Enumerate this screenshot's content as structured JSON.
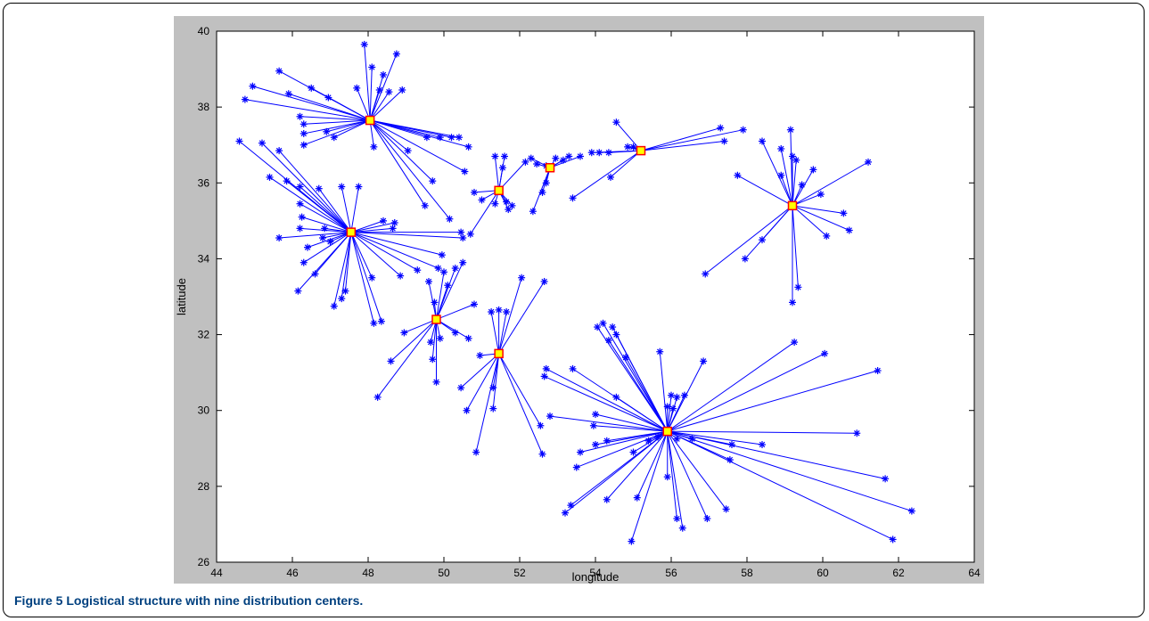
{
  "caption": {
    "label": "Figure 5",
    "text": "Logistical structure with nine distribution centers."
  },
  "chart_data": {
    "type": "scatter",
    "title": "",
    "xlabel": "longitude",
    "ylabel": "latitude",
    "xlim": [
      44,
      64
    ],
    "ylim": [
      26,
      40
    ],
    "xticks": [
      "44",
      "46",
      "48",
      "50",
      "52",
      "54",
      "56",
      "58",
      "60",
      "62",
      "64"
    ],
    "yticks": [
      "26",
      "28",
      "30",
      "32",
      "34",
      "36",
      "38",
      "40"
    ],
    "grid": false,
    "colors": {
      "link": "#0000ff",
      "customer": "#0000ff",
      "center_fill": "#ffff00",
      "center_edge": "#ff0000"
    },
    "series": [
      {
        "center": [
          48.05,
          37.65
        ],
        "customers": [
          [
            47.9,
            39.65
          ],
          [
            48.1,
            39.05
          ],
          [
            48.4,
            38.85
          ],
          [
            48.75,
            39.4
          ],
          [
            47.7,
            38.5
          ],
          [
            48.3,
            38.45
          ],
          [
            48.55,
            38.4
          ],
          [
            48.9,
            38.45
          ],
          [
            44.95,
            38.55
          ],
          [
            44.75,
            38.2
          ],
          [
            45.65,
            38.95
          ],
          [
            45.9,
            38.35
          ],
          [
            46.5,
            38.5
          ],
          [
            46.95,
            38.25
          ],
          [
            46.2,
            37.75
          ],
          [
            46.3,
            37.55
          ],
          [
            46.9,
            37.35
          ],
          [
            46.3,
            37.3
          ],
          [
            46.3,
            37.0
          ],
          [
            47.1,
            37.2
          ],
          [
            48.15,
            36.95
          ],
          [
            49.05,
            36.85
          ],
          [
            49.55,
            37.2
          ],
          [
            49.9,
            37.2
          ],
          [
            50.2,
            37.2
          ],
          [
            50.4,
            37.2
          ],
          [
            50.65,
            36.95
          ],
          [
            49.7,
            36.05
          ],
          [
            50.55,
            36.3
          ],
          [
            49.5,
            35.4
          ],
          [
            50.15,
            35.05
          ]
        ]
      },
      {
        "center": [
          47.55,
          34.7
        ],
        "customers": [
          [
            44.6,
            37.1
          ],
          [
            45.2,
            37.05
          ],
          [
            45.65,
            36.85
          ],
          [
            45.4,
            36.15
          ],
          [
            45.85,
            36.05
          ],
          [
            46.2,
            35.9
          ],
          [
            46.7,
            35.85
          ],
          [
            47.3,
            35.9
          ],
          [
            47.75,
            35.9
          ],
          [
            46.2,
            35.45
          ],
          [
            46.25,
            35.1
          ],
          [
            46.2,
            34.8
          ],
          [
            45.65,
            34.55
          ],
          [
            46.85,
            34.8
          ],
          [
            46.8,
            34.55
          ],
          [
            47.0,
            34.45
          ],
          [
            46.4,
            34.3
          ],
          [
            46.3,
            33.9
          ],
          [
            46.6,
            33.6
          ],
          [
            46.15,
            33.15
          ],
          [
            47.4,
            33.15
          ],
          [
            47.3,
            32.95
          ],
          [
            47.1,
            32.75
          ],
          [
            48.15,
            32.3
          ],
          [
            48.35,
            32.35
          ],
          [
            48.1,
            33.5
          ],
          [
            48.85,
            33.55
          ],
          [
            49.3,
            33.7
          ],
          [
            49.85,
            33.75
          ],
          [
            49.95,
            34.1
          ],
          [
            50.5,
            34.55
          ],
          [
            50.45,
            34.7
          ],
          [
            48.65,
            34.8
          ],
          [
            48.7,
            34.95
          ],
          [
            48.4,
            35.0
          ]
        ]
      },
      {
        "center": [
          49.8,
          32.4
        ],
        "customers": [
          [
            49.6,
            33.4
          ],
          [
            50.0,
            33.65
          ],
          [
            50.3,
            33.75
          ],
          [
            50.5,
            33.9
          ],
          [
            50.1,
            33.3
          ],
          [
            49.75,
            32.85
          ],
          [
            50.8,
            32.8
          ],
          [
            49.9,
            31.9
          ],
          [
            50.3,
            32.05
          ],
          [
            48.95,
            32.05
          ],
          [
            49.65,
            31.8
          ],
          [
            48.6,
            31.3
          ],
          [
            49.7,
            31.35
          ],
          [
            49.8,
            30.75
          ],
          [
            48.25,
            30.35
          ],
          [
            50.65,
            31.9
          ]
        ]
      },
      {
        "center": [
          51.45,
          31.5
        ],
        "customers": [
          [
            51.25,
            32.6
          ],
          [
            51.45,
            32.65
          ],
          [
            51.65,
            32.6
          ],
          [
            52.05,
            33.5
          ],
          [
            52.65,
            33.4
          ],
          [
            50.95,
            31.45
          ],
          [
            50.45,
            30.6
          ],
          [
            50.6,
            30.0
          ],
          [
            50.85,
            28.9
          ],
          [
            52.55,
            29.6
          ],
          [
            52.6,
            28.85
          ],
          [
            51.3,
            30.05
          ],
          [
            51.3,
            30.6
          ]
        ]
      },
      {
        "center": [
          51.45,
          35.8
        ],
        "customers": [
          [
            51.35,
            36.7
          ],
          [
            51.6,
            36.7
          ],
          [
            51.55,
            36.4
          ],
          [
            52.15,
            36.55
          ],
          [
            50.8,
            35.75
          ],
          [
            51.0,
            35.55
          ],
          [
            51.35,
            35.45
          ],
          [
            51.65,
            35.5
          ],
          [
            51.7,
            35.3
          ],
          [
            51.8,
            35.4
          ],
          [
            50.7,
            34.65
          ]
        ]
      },
      {
        "center": [
          52.8,
          36.4
        ],
        "customers": [
          [
            52.3,
            36.65
          ],
          [
            52.45,
            36.5
          ],
          [
            52.7,
            36.45
          ],
          [
            52.95,
            36.65
          ],
          [
            53.15,
            36.6
          ],
          [
            53.3,
            36.7
          ],
          [
            53.6,
            36.7
          ],
          [
            52.6,
            35.75
          ],
          [
            52.35,
            35.25
          ],
          [
            52.7,
            36.0
          ]
        ]
      },
      {
        "center": [
          55.2,
          36.85
        ],
        "customers": [
          [
            53.9,
            36.8
          ],
          [
            54.1,
            36.8
          ],
          [
            54.35,
            36.8
          ],
          [
            54.55,
            37.6
          ],
          [
            54.85,
            36.95
          ],
          [
            55.0,
            36.95
          ],
          [
            53.4,
            35.6
          ],
          [
            54.4,
            36.15
          ],
          [
            57.3,
            37.45
          ],
          [
            57.9,
            37.4
          ],
          [
            57.4,
            37.1
          ]
        ]
      },
      {
        "center": [
          59.2,
          35.4
        ],
        "customers": [
          [
            59.15,
            37.4
          ],
          [
            58.4,
            37.1
          ],
          [
            58.9,
            36.9
          ],
          [
            59.2,
            36.7
          ],
          [
            59.3,
            36.6
          ],
          [
            59.45,
            35.95
          ],
          [
            59.75,
            36.35
          ],
          [
            57.75,
            36.2
          ],
          [
            58.9,
            36.2
          ],
          [
            61.2,
            36.55
          ],
          [
            59.95,
            35.7
          ],
          [
            60.55,
            35.2
          ],
          [
            60.1,
            34.6
          ],
          [
            60.7,
            34.75
          ],
          [
            59.35,
            33.25
          ],
          [
            59.2,
            32.85
          ],
          [
            58.4,
            34.5
          ],
          [
            57.95,
            34.0
          ],
          [
            56.9,
            33.6
          ]
        ]
      },
      {
        "center": [
          55.9,
          29.45
        ],
        "customers": [
          [
            54.2,
            32.3
          ],
          [
            54.45,
            32.2
          ],
          [
            54.05,
            32.2
          ],
          [
            54.55,
            32.0
          ],
          [
            54.35,
            31.85
          ],
          [
            54.8,
            31.4
          ],
          [
            55.7,
            31.55
          ],
          [
            56.85,
            31.3
          ],
          [
            53.4,
            31.1
          ],
          [
            52.7,
            31.1
          ],
          [
            52.65,
            30.9
          ],
          [
            54.55,
            30.35
          ],
          [
            56.0,
            30.4
          ],
          [
            56.15,
            30.35
          ],
          [
            56.35,
            30.4
          ],
          [
            55.9,
            30.1
          ],
          [
            56.05,
            30.05
          ],
          [
            52.8,
            29.85
          ],
          [
            54.0,
            29.9
          ],
          [
            54.3,
            29.2
          ],
          [
            54.0,
            29.1
          ],
          [
            53.6,
            28.9
          ],
          [
            53.5,
            28.5
          ],
          [
            55.0,
            28.9
          ],
          [
            55.4,
            29.2
          ],
          [
            55.65,
            29.3
          ],
          [
            56.15,
            29.25
          ],
          [
            56.55,
            29.25
          ],
          [
            57.55,
            28.7
          ],
          [
            57.6,
            29.1
          ],
          [
            58.4,
            29.1
          ],
          [
            60.9,
            29.4
          ],
          [
            59.25,
            31.8
          ],
          [
            60.05,
            31.5
          ],
          [
            61.45,
            31.05
          ],
          [
            61.65,
            28.2
          ],
          [
            62.35,
            27.35
          ],
          [
            61.85,
            26.6
          ],
          [
            57.45,
            27.4
          ],
          [
            56.95,
            27.15
          ],
          [
            56.3,
            26.9
          ],
          [
            56.15,
            27.15
          ],
          [
            55.9,
            28.25
          ],
          [
            55.1,
            27.7
          ],
          [
            54.3,
            27.65
          ],
          [
            53.35,
            27.5
          ],
          [
            53.2,
            27.3
          ],
          [
            54.95,
            26.55
          ],
          [
            53.95,
            29.6
          ]
        ]
      }
    ]
  }
}
